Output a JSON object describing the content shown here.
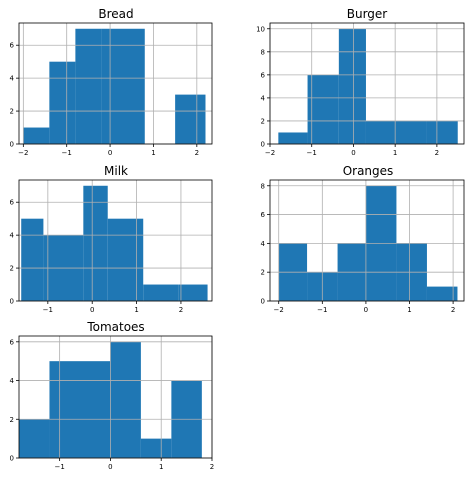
{
  "chart_data": [
    {
      "type": "bar",
      "title": "Bread",
      "bins": [
        [
          -2.0,
          -1.4
        ],
        [
          -1.4,
          -0.8
        ],
        [
          -0.8,
          -0.2
        ],
        [
          -0.2,
          0.8
        ],
        [
          0.8,
          1.5
        ],
        [
          1.5,
          2.2
        ]
      ],
      "values": [
        1,
        5,
        7,
        7,
        0,
        3
      ],
      "xlim": [
        -2.1,
        2.35
      ],
      "ylim": [
        0,
        7.35
      ],
      "xticks": [
        -2,
        -1,
        0,
        1,
        2
      ],
      "xtick_labels": [
        "−2",
        "−1",
        "0",
        "1",
        "2"
      ],
      "yticks": [
        0,
        2,
        4,
        6
      ],
      "ytick_labels": [
        "0",
        "2",
        "4",
        "6"
      ],
      "grid": true,
      "xlabel": "",
      "ylabel": ""
    },
    {
      "type": "bar",
      "title": "Burger",
      "bins": [
        [
          -1.8,
          -1.1
        ],
        [
          -1.1,
          -0.35
        ],
        [
          -0.35,
          0.3
        ],
        [
          0.3,
          1.0
        ],
        [
          1.0,
          1.75
        ],
        [
          1.75,
          2.5
        ]
      ],
      "values": [
        1,
        6,
        10,
        2,
        2,
        2
      ],
      "xlim": [
        -2.0,
        2.65
      ],
      "ylim": [
        0,
        10.5
      ],
      "xticks": [
        -2,
        -1,
        0,
        1,
        2
      ],
      "xtick_labels": [
        "−2",
        "−1",
        "0",
        "1",
        "2"
      ],
      "yticks": [
        0,
        2,
        4,
        6,
        8,
        10
      ],
      "ytick_labels": [
        "0",
        "2",
        "4",
        "6",
        "8",
        "10"
      ],
      "grid": true,
      "xlabel": "",
      "ylabel": ""
    },
    {
      "type": "bar",
      "title": "Milk",
      "bins": [
        [
          -1.6,
          -1.1
        ],
        [
          -1.1,
          -0.2
        ],
        [
          -0.2,
          0.35
        ],
        [
          0.35,
          1.15
        ],
        [
          1.15,
          1.95
        ],
        [
          1.95,
          2.6
        ]
      ],
      "values": [
        5,
        4,
        7,
        5,
        1,
        1
      ],
      "xlim": [
        -1.65,
        2.7
      ],
      "ylim": [
        0,
        7.35
      ],
      "xticks": [
        -1,
        0,
        1,
        2
      ],
      "xtick_labels": [
        "−1",
        "0",
        "1",
        "2"
      ],
      "yticks": [
        0,
        2,
        4,
        6
      ],
      "ytick_labels": [
        "0",
        "2",
        "4",
        "6"
      ],
      "grid": true,
      "xlabel": "",
      "ylabel": ""
    },
    {
      "type": "bar",
      "title": "Oranges",
      "bins": [
        [
          -2.0,
          -1.35
        ],
        [
          -1.35,
          -0.65
        ],
        [
          -0.65,
          0.0
        ],
        [
          0.0,
          0.7
        ],
        [
          0.7,
          1.4
        ],
        [
          1.4,
          2.1
        ]
      ],
      "values": [
        4,
        2,
        4,
        8,
        4,
        1
      ],
      "xlim": [
        -2.2,
        2.25
      ],
      "ylim": [
        0,
        8.4
      ],
      "xticks": [
        -2,
        -1,
        0,
        1,
        2
      ],
      "xtick_labels": [
        "−2",
        "−1",
        "0",
        "1",
        "2"
      ],
      "yticks": [
        0,
        2,
        4,
        6,
        8
      ],
      "ytick_labels": [
        "0",
        "2",
        "4",
        "6",
        "8"
      ],
      "grid": true,
      "xlabel": "",
      "ylabel": ""
    },
    {
      "type": "bar",
      "title": "Tomatoes",
      "bins": [
        [
          -1.8,
          -1.2
        ],
        [
          -1.2,
          0.0
        ],
        [
          0.0,
          0.6
        ],
        [
          0.6,
          1.2
        ],
        [
          1.2,
          1.8
        ]
      ],
      "values": [
        2,
        5,
        6,
        1,
        4
      ],
      "xlim": [
        -1.8,
        2.0
      ],
      "ylim": [
        0,
        6.3
      ],
      "xticks": [
        -1,
        0,
        1,
        2
      ],
      "xtick_labels": [
        "−1",
        "0",
        "1",
        "2"
      ],
      "yticks": [
        0,
        2,
        4,
        6
      ],
      "ytick_labels": [
        "0",
        "2",
        "4",
        "6"
      ],
      "grid": true,
      "xlabel": "",
      "ylabel": ""
    }
  ],
  "colors": {
    "bar": "#1f77b4",
    "grid": "#b0b0b0",
    "frame": "#000000"
  }
}
